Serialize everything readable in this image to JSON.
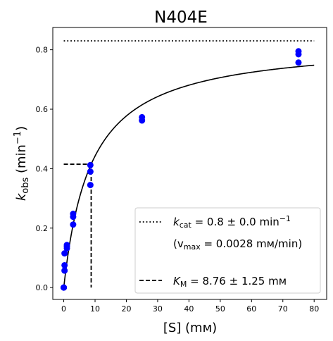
{
  "chart_data": {
    "type": "scatter",
    "title": "N404E",
    "xlabel": {
      "pre": "[S] (",
      "unit": "mм",
      "post": ")"
    },
    "ylabel": {
      "main": "k",
      "sub": "obs",
      "unit_pre": " (min",
      "sup": "−1",
      "unit_post": ")"
    },
    "xlim": [
      -3.5,
      84
    ],
    "ylim": [
      -0.04,
      0.875
    ],
    "xticks": [
      0,
      10,
      20,
      30,
      40,
      50,
      60,
      70,
      80
    ],
    "yticks": [
      0.0,
      0.2,
      0.4,
      0.6,
      0.8
    ],
    "ytick_labels": [
      "0.0",
      "0.2",
      "0.4",
      "0.6",
      "0.8"
    ],
    "grid": false,
    "legend_position": "lower-right",
    "points": {
      "color": "#0000ff",
      "x": [
        0,
        0,
        0,
        0.25,
        0.25,
        0.25,
        1,
        1,
        1,
        3,
        3,
        3,
        8.5,
        8.5,
        8.5,
        25,
        25,
        75,
        75,
        75
      ],
      "y": [
        0.0,
        0.0,
        0.0,
        0.057,
        0.075,
        0.115,
        0.132,
        0.138,
        0.143,
        0.212,
        0.238,
        0.248,
        0.345,
        0.39,
        0.412,
        0.562,
        0.573,
        0.757,
        0.785,
        0.795
      ]
    },
    "fit": {
      "color": "#000000",
      "vmax": 0.83,
      "km": 8.76,
      "x_range": [
        0,
        80
      ]
    },
    "kcat_line": {
      "y": 0.83,
      "x_range": [
        0,
        80
      ],
      "style": "dotted"
    },
    "km_line": {
      "x": 8.76,
      "y": 0.415,
      "style": "dashed"
    },
    "legend": [
      {
        "style": "dotted",
        "prefix": "k",
        "sub": "cat",
        "text": " = 0.8 ± 0.0 min",
        "sup": "−1"
      },
      {
        "style": "none",
        "text": "(v",
        "sub": "max",
        "text2": " = 0.0028 mм/min)"
      },
      {
        "style": "dashed",
        "prefix": "K",
        "sub": "M",
        "text": " = 8.76 ± 1.25 mм"
      }
    ]
  }
}
